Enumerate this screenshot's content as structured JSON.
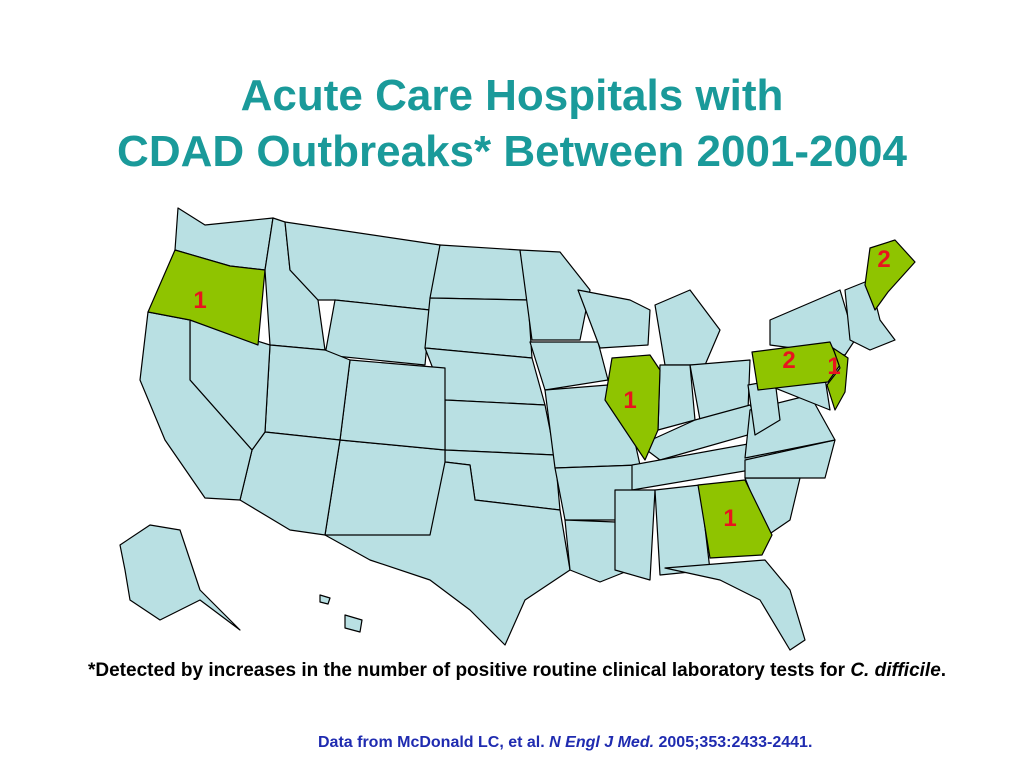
{
  "title": {
    "line1": "Acute Care Hospitals with",
    "line2": "CDAD Outbreaks* Between 2001-2004"
  },
  "colors": {
    "base_state": "#b9e0e3",
    "highlight_state": "#8fc400",
    "count_label": "#e8141e",
    "title": "#1a9a9a",
    "citation": "#1f2bb0"
  },
  "highlighted_states": [
    {
      "name": "Oregon",
      "count": "1"
    },
    {
      "name": "Illinois",
      "count": "1"
    },
    {
      "name": "Pennsylvania",
      "count": "2"
    },
    {
      "name": "New Jersey",
      "count": "1"
    },
    {
      "name": "Maine",
      "count": "2"
    },
    {
      "name": "Georgia",
      "count": "1"
    }
  ],
  "footnote": {
    "prefix": "*Detected by increases in the number of positive routine clinical laboratory tests for ",
    "organism": "C. difficile",
    "suffix": "."
  },
  "citation": {
    "prefix": "Data from McDonald LC, et al. ",
    "journal": "N Engl J Med.",
    "suffix": " 2005;353:2433-2441."
  }
}
